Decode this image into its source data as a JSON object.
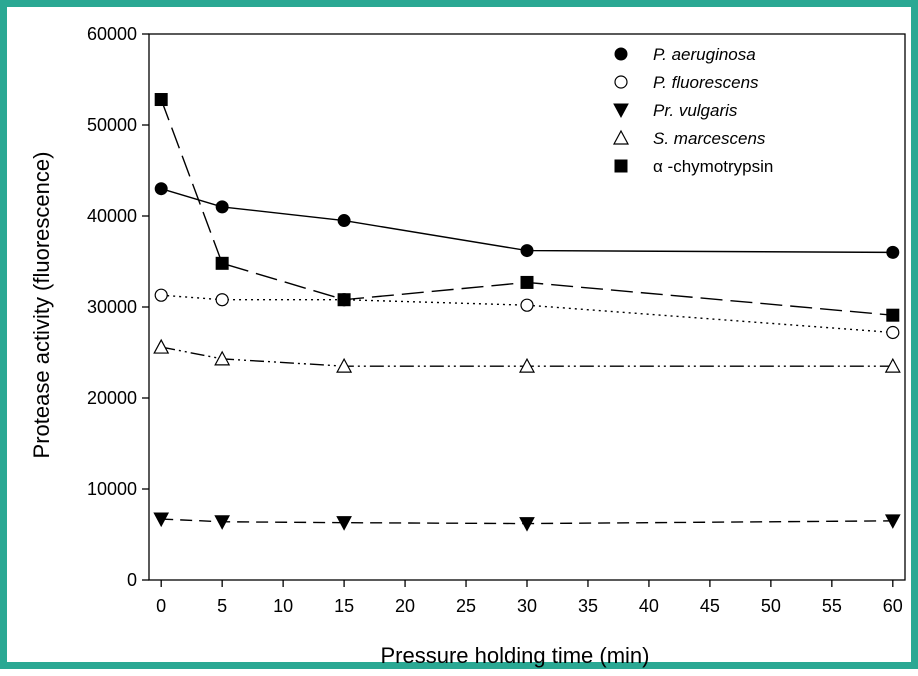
{
  "frame": {
    "border_color": "#2aa893"
  },
  "chart_data": {
    "type": "line",
    "title": "",
    "xlabel": "Pressure holding time (min)",
    "ylabel": "Protease activity (fluorescence)",
    "xlim": [
      -1,
      61
    ],
    "ylim": [
      0,
      60000
    ],
    "x_ticks": [
      0,
      5,
      10,
      15,
      20,
      25,
      30,
      35,
      40,
      45,
      50,
      55,
      60
    ],
    "y_ticks": [
      0,
      10000,
      20000,
      30000,
      40000,
      50000,
      60000
    ],
    "grid": false,
    "legend_position": "top-right",
    "series": [
      {
        "name": "P. aeruginosa",
        "marker": "filled-circle",
        "line": "solid",
        "italic": true,
        "x": [
          0,
          5,
          15,
          30,
          60
        ],
        "y": [
          43000,
          41000,
          39500,
          36200,
          36000
        ]
      },
      {
        "name": "P. fluorescens",
        "marker": "open-circle",
        "line": "dotted",
        "italic": true,
        "x": [
          0,
          5,
          15,
          30,
          60
        ],
        "y": [
          31300,
          30800,
          30800,
          30200,
          27200
        ]
      },
      {
        "name": "Pr. vulgaris",
        "marker": "filled-triangle-down",
        "line": "dashed",
        "italic": true,
        "x": [
          0,
          5,
          15,
          30,
          60
        ],
        "y": [
          6700,
          6400,
          6300,
          6200,
          6500
        ]
      },
      {
        "name": "S. marcescens",
        "marker": "open-triangle-up",
        "line": "dash-dot-dot",
        "italic": true,
        "x": [
          0,
          5,
          15,
          30,
          60
        ],
        "y": [
          25600,
          24300,
          23500,
          23500,
          23500
        ]
      },
      {
        "name": "α -chymotrypsin",
        "marker": "filled-square",
        "line": "long-dash",
        "italic": false,
        "x": [
          0,
          5,
          15,
          30,
          60
        ],
        "y": [
          52800,
          34800,
          30800,
          32700,
          29100
        ]
      }
    ]
  }
}
